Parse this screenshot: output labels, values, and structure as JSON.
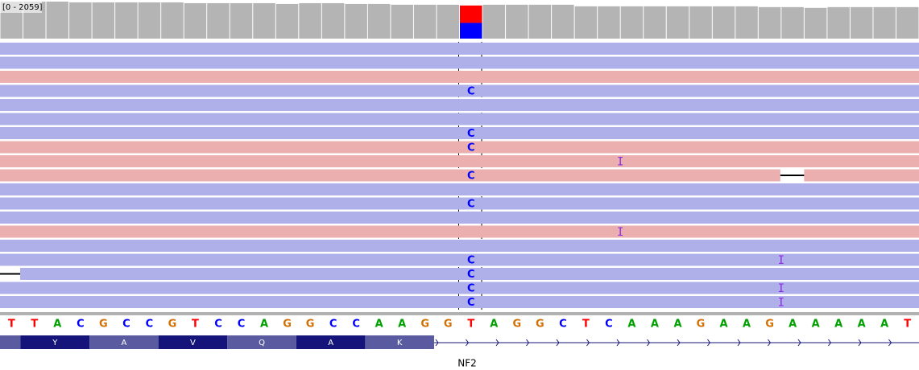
{
  "coverage": {
    "range_label": "[0 - 2059]",
    "range": [
      0,
      2059
    ],
    "color": "#b4b4b4",
    "values": [
      2016,
      2016,
      2016,
      1973,
      1973,
      1973,
      1973,
      1973,
      1930,
      1930,
      1930,
      1930,
      1887,
      1930,
      1930,
      1887,
      1887,
      1845,
      1845,
      1845,
      1802,
      1845,
      1845,
      1845,
      1845,
      1759,
      1759,
      1759,
      1759,
      1759,
      1759,
      1759,
      1759,
      1716,
      1716,
      1673,
      1716,
      1716,
      1716,
      1716
    ],
    "split": {
      "base": 20,
      "values": [
        944,
        858
      ],
      "colors": [
        "#ff0000",
        "#0000ff"
      ]
    }
  },
  "reads": [
    {
      "color": "#afafea"
    },
    {
      "color": "#afafea"
    },
    {
      "color": "#ebafaf"
    },
    {
      "color": "#afafea",
      "mismatch": {
        "base": 20,
        "text": "C"
      }
    },
    {
      "color": "#afafea"
    },
    {
      "color": "#afafea"
    },
    {
      "color": "#afafea",
      "mismatch": {
        "base": 20,
        "text": "C"
      }
    },
    {
      "color": "#ebafaf",
      "mismatch": {
        "base": 20,
        "text": "C"
      }
    },
    {
      "color": "#ebafaf",
      "insertion": {
        "after": 26,
        "text": "I"
      }
    },
    {
      "color": "#ebafaf",
      "mismatch": {
        "base": 20,
        "text": "C"
      },
      "deletion": 34
    },
    {
      "color": "#afafea"
    },
    {
      "color": "#afafea",
      "mismatch": {
        "base": 20,
        "text": "C"
      }
    },
    {
      "color": "#afafea"
    },
    {
      "color": "#ebafaf",
      "insertion": {
        "after": 26,
        "text": "I"
      }
    },
    {
      "color": "#afafea"
    },
    {
      "color": "#afafea",
      "mismatch": {
        "base": 20,
        "text": "C"
      },
      "insertion": {
        "after": 33,
        "text": "I"
      }
    },
    {
      "color": "#afafea",
      "mismatch": {
        "base": 20,
        "text": "C"
      },
      "deletion": 0
    },
    {
      "color": "#afafea",
      "mismatch": {
        "base": 20,
        "text": "C"
      },
      "insertion": {
        "after": 33,
        "text": "I"
      }
    },
    {
      "color": "#afafea",
      "mismatch": {
        "base": 20,
        "text": "C"
      },
      "insertion": {
        "after": 33,
        "text": "I"
      }
    }
  ],
  "sequence": [
    "T",
    "T",
    "A",
    "C",
    "G",
    "C",
    "C",
    "G",
    "T",
    "C",
    "C",
    "A",
    "G",
    "G",
    "C",
    "C",
    "A",
    "A",
    "G",
    "G",
    "T",
    "A",
    "G",
    "G",
    "C",
    "T",
    "C",
    "A",
    "A",
    "A",
    "G",
    "A",
    "A",
    "G",
    "A",
    "A",
    "A",
    "A",
    "A",
    "T"
  ],
  "base_colors": {
    "A": "#00a000",
    "C": "#0000ff",
    "G": "#d17105",
    "T": "#ff0000"
  },
  "amino_acids": [
    "Y",
    "A",
    "V",
    "Q",
    "A",
    "K"
  ],
  "gene": {
    "name": "NF2"
  }
}
